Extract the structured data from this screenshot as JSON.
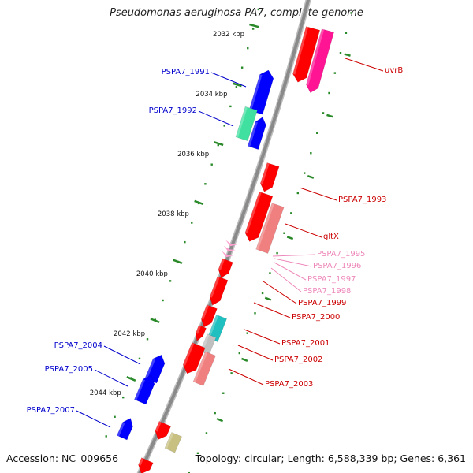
{
  "title": "Pseudomonas aeruginosa PA7, complete genome",
  "footer": {
    "accession": "Accession: NC_009656",
    "summary": "Topology: circular; Length: 6,588,339 bp; Genes: 6,361"
  },
  "colors": {
    "backbone": "#8a8a8a",
    "tick": "#2a8a2a",
    "gene_red": "#ff0000",
    "gene_salmon": "#f08080",
    "gene_magenta": "#ff1493",
    "gene_blue": "#0000ff",
    "gene_green": "#40e0a0",
    "gene_cyan": "#20c0c0",
    "gene_gray": "#c0c0c0",
    "gene_khaki": "#c8c080",
    "gene_pink": "#ff9ecf",
    "label_blue": "#0000cc",
    "label_red": "#cc0000",
    "label_pink": "#ee88bb"
  },
  "ticks": [
    {
      "label": "2032 kbp"
    },
    {
      "label": "2034 kbp"
    },
    {
      "label": "2036 kbp"
    },
    {
      "label": "2038 kbp"
    },
    {
      "label": "2040 kbp"
    },
    {
      "label": "2042 kbp"
    },
    {
      "label": "2044 kbp"
    }
  ],
  "gene_labels": [
    {
      "text": "PSPA7_1991",
      "color": "label_blue"
    },
    {
      "text": "PSPA7_1992",
      "color": "label_blue"
    },
    {
      "text": "PSPA7_2004",
      "color": "label_blue"
    },
    {
      "text": "PSPA7_2005",
      "color": "label_blue"
    },
    {
      "text": "PSPA7_2007",
      "color": "label_blue"
    },
    {
      "text": "uvrB",
      "color": "label_red"
    },
    {
      "text": "PSPA7_1993",
      "color": "label_red"
    },
    {
      "text": "gltX",
      "color": "label_red"
    },
    {
      "text": "PSPA7_1995",
      "color": "label_pink"
    },
    {
      "text": "PSPA7_1996",
      "color": "label_pink"
    },
    {
      "text": "PSPA7_1997",
      "color": "label_pink"
    },
    {
      "text": "PSPA7_1998",
      "color": "label_pink"
    },
    {
      "text": "PSPA7_1999",
      "color": "label_red"
    },
    {
      "text": "PSPA7_2000",
      "color": "label_red"
    },
    {
      "text": "PSPA7_2001",
      "color": "label_red"
    },
    {
      "text": "PSPA7_2002",
      "color": "label_red"
    },
    {
      "text": "PSPA7_2003",
      "color": "label_red"
    }
  ],
  "genes": [
    {
      "color": "gene_blue"
    },
    {
      "color": "gene_green"
    },
    {
      "color": "gene_blue"
    },
    {
      "color": "gene_blue"
    },
    {
      "color": "gene_blue"
    },
    {
      "color": "gene_blue"
    },
    {
      "color": "gene_red"
    },
    {
      "color": "gene_magenta"
    },
    {
      "color": "gene_red"
    },
    {
      "color": "gene_red"
    },
    {
      "color": "gene_salmon"
    },
    {
      "color": "gene_pink"
    },
    {
      "color": "gene_red"
    },
    {
      "color": "gene_red"
    },
    {
      "color": "gene_red"
    },
    {
      "color": "gene_cyan"
    },
    {
      "color": "gene_red"
    },
    {
      "color": "gene_gray"
    },
    {
      "color": "gene_red"
    },
    {
      "color": "gene_salmon"
    },
    {
      "color": "gene_red"
    },
    {
      "color": "gene_khaki"
    },
    {
      "color": "gene_red"
    }
  ]
}
